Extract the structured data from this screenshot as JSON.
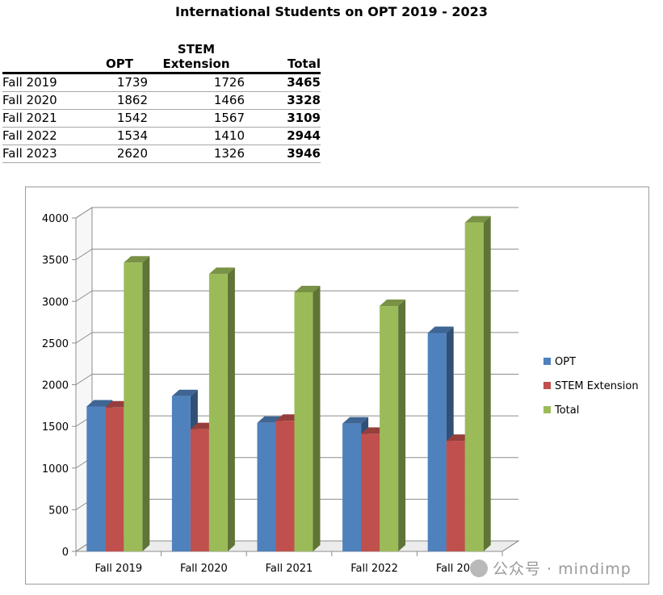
{
  "title": "International Students on OPT 2019 - 2023",
  "table": {
    "headers": {
      "label": "",
      "opt": "OPT",
      "stem_line1": "STEM",
      "stem_line2": "Extension",
      "total": "Total"
    },
    "rows": [
      {
        "label": "Fall 2019",
        "opt": "1739",
        "stem": "1726",
        "total": "3465"
      },
      {
        "label": "Fall 2020",
        "opt": "1862",
        "stem": "1466",
        "total": "3328"
      },
      {
        "label": "Fall 2021",
        "opt": "1542",
        "stem": "1567",
        "total": "3109"
      },
      {
        "label": "Fall 2022",
        "opt": "1534",
        "stem": "1410",
        "total": "2944"
      },
      {
        "label": "Fall 2023",
        "opt": "2620",
        "stem": "1326",
        "total": "3946"
      }
    ]
  },
  "chart_data": {
    "type": "bar",
    "style": "3d-clustered-column",
    "categories": [
      "Fall 2019",
      "Fall 2020",
      "Fall 2021",
      "Fall 2022",
      "Fall 2023"
    ],
    "series": [
      {
        "name": "OPT",
        "values": [
          1739,
          1862,
          1542,
          1534,
          2620
        ],
        "color": "#4f81bd"
      },
      {
        "name": "STEM Extension",
        "values": [
          1726,
          1466,
          1567,
          1410,
          1326
        ],
        "color": "#c0504d"
      },
      {
        "name": "Total",
        "values": [
          3465,
          3328,
          3109,
          2944,
          3946
        ],
        "color": "#9bbb59"
      }
    ],
    "ylim": [
      0,
      4000
    ],
    "yticks": [
      "0",
      "500",
      "1000",
      "1500",
      "2000",
      "2500",
      "3000",
      "3500",
      "4000"
    ],
    "grid": true,
    "legend": "right",
    "title": "",
    "xlabel": "",
    "ylabel": ""
  },
  "watermark": "公众号 · mindimp"
}
